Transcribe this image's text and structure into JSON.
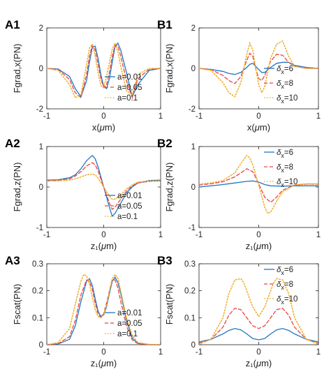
{
  "colors": {
    "blue": "#1f77c4",
    "red": "#e8453c",
    "yellow": "#f0b030"
  },
  "chart_data": [
    {
      "panel_label": "A1",
      "type": "line",
      "xlabel_pre": "x(",
      "xlabel_mu": "μ",
      "xlabel_post": "m)",
      "ylabel": "Fgrad,x(PN)",
      "xlim": [
        -1,
        1
      ],
      "ylim": [
        -2,
        2
      ],
      "xticks": [
        -1,
        0,
        1
      ],
      "xtick_labels": [
        "-1",
        "0",
        "1"
      ],
      "yticks": [
        -2,
        0,
        2
      ],
      "ytick_labels": [
        "-2",
        "0",
        "2"
      ],
      "legend_loc": "lower-right",
      "series": [
        {
          "name": "a=0.01",
          "color": "blue",
          "dash": "solid",
          "x": [
            -1,
            -0.8,
            -0.6,
            -0.5,
            -0.4,
            -0.3,
            -0.25,
            -0.2,
            -0.15,
            -0.1,
            -0.05,
            0,
            0.05,
            0.1,
            0.15,
            0.2,
            0.25,
            0.3,
            0.4,
            0.5,
            0.6,
            0.8,
            1
          ],
          "y": [
            0,
            -0.03,
            -0.4,
            -1.0,
            -1.4,
            -0.6,
            0.3,
            1.05,
            1.1,
            0.5,
            -0.3,
            -0.9,
            -1.0,
            -0.5,
            0.3,
            1.1,
            1.25,
            0.9,
            -0.2,
            -1.4,
            -0.8,
            -0.1,
            0
          ]
        },
        {
          "name": "a=0.05",
          "color": "red",
          "dash": "dashed",
          "x": [
            -1,
            -0.8,
            -0.6,
            -0.5,
            -0.4,
            -0.3,
            -0.25,
            -0.2,
            -0.15,
            -0.1,
            -0.05,
            0,
            0.05,
            0.1,
            0.15,
            0.2,
            0.25,
            0.3,
            0.4,
            0.5,
            0.6,
            0.8,
            1
          ],
          "y": [
            0,
            -0.05,
            -0.55,
            -1.2,
            -1.45,
            -0.3,
            0.6,
            1.15,
            0.9,
            0.2,
            -0.5,
            -0.95,
            -0.8,
            -0.2,
            0.6,
            1.15,
            1.1,
            0.6,
            -0.6,
            -1.45,
            -0.5,
            -0.05,
            0
          ]
        },
        {
          "name": "a=0.1",
          "color": "yellow",
          "dash": "dotted",
          "x": [
            -1,
            -0.8,
            -0.6,
            -0.5,
            -0.4,
            -0.3,
            -0.25,
            -0.2,
            -0.15,
            -0.1,
            -0.05,
            0,
            0.05,
            0.1,
            0.15,
            0.2,
            0.25,
            0.3,
            0.4,
            0.5,
            0.6,
            0.8,
            1
          ],
          "y": [
            0,
            -0.1,
            -0.8,
            -1.45,
            -1.3,
            0.2,
            1.0,
            1.2,
            0.6,
            -0.2,
            -0.85,
            -0.95,
            -0.4,
            0.3,
            0.95,
            1.25,
            0.8,
            0.1,
            -1.1,
            -1.3,
            -0.3,
            0,
            0
          ]
        }
      ]
    },
    {
      "panel_label": "B1",
      "type": "line",
      "xlabel_pre": "x(",
      "xlabel_mu": "μ",
      "xlabel_post": "m)",
      "ylabel": "Fgrad,x(PN)",
      "xlim": [
        -1,
        1
      ],
      "ylim": [
        -2,
        2
      ],
      "xticks": [
        -1,
        0,
        1
      ],
      "xtick_labels": [
        "-1",
        "0",
        "1"
      ],
      "yticks": [
        -2,
        0,
        2
      ],
      "ytick_labels": [
        "-2",
        "0",
        "2"
      ],
      "legend_loc": "lower-right",
      "series": [
        {
          "name": "6",
          "color": "blue",
          "dash": "solid",
          "x": [
            -1,
            -0.8,
            -0.6,
            -0.5,
            -0.4,
            -0.3,
            -0.2,
            -0.15,
            -0.1,
            -0.05,
            0,
            0.05,
            0.1,
            0.2,
            0.3,
            0.4,
            0.5,
            0.6,
            0.8,
            1
          ],
          "y": [
            0,
            -0.05,
            -0.15,
            -0.25,
            -0.3,
            -0.2,
            0.05,
            0.2,
            0.25,
            0.1,
            -0.05,
            -0.2,
            -0.2,
            0.05,
            0.25,
            0.3,
            0.3,
            0.15,
            0.05,
            0
          ]
        },
        {
          "name": "8",
          "color": "red",
          "dash": "dashed",
          "x": [
            -1,
            -0.8,
            -0.6,
            -0.5,
            -0.4,
            -0.3,
            -0.2,
            -0.15,
            -0.1,
            -0.05,
            0,
            0.05,
            0.1,
            0.2,
            0.3,
            0.4,
            0.5,
            0.6,
            0.8,
            1
          ],
          "y": [
            0,
            -0.05,
            -0.35,
            -0.6,
            -0.75,
            -0.4,
            0.4,
            0.75,
            0.6,
            0.0,
            -0.5,
            -0.6,
            -0.35,
            0.35,
            0.7,
            0.65,
            0.3,
            0.1,
            0,
            0
          ]
        },
        {
          "name": "10",
          "color": "yellow",
          "dash": "dotted",
          "x": [
            -1,
            -0.8,
            -0.6,
            -0.5,
            -0.4,
            -0.3,
            -0.2,
            -0.15,
            -0.1,
            -0.05,
            0,
            0.05,
            0.1,
            0.2,
            0.3,
            0.4,
            0.5,
            0.6,
            0.8,
            1
          ],
          "y": [
            0,
            -0.1,
            -0.7,
            -1.2,
            -1.4,
            -0.7,
            0.7,
            1.25,
            0.9,
            0.0,
            -0.8,
            -1.2,
            -0.9,
            0.5,
            1.2,
            1.35,
            0.6,
            0.1,
            0,
            0
          ]
        }
      ]
    },
    {
      "panel_label": "A2",
      "type": "line",
      "xlabel_pre": "z₁(",
      "xlabel_mu": "μ",
      "xlabel_post": "m)",
      "ylabel": "Fgrad,z(PN)",
      "xlim": [
        -1,
        1
      ],
      "ylim": [
        -1,
        1
      ],
      "xticks": [
        -1,
        0,
        1
      ],
      "xtick_labels": [
        "-1",
        "0",
        "1"
      ],
      "yticks": [
        -1,
        0,
        1
      ],
      "ytick_labels": [
        "-1",
        "0",
        "1"
      ],
      "legend_loc": "lower-right",
      "series": [
        {
          "name": "a=0.01",
          "color": "blue",
          "dash": "solid",
          "x": [
            -1,
            -0.8,
            -0.6,
            -0.5,
            -0.4,
            -0.3,
            -0.2,
            -0.15,
            -0.1,
            0,
            0.1,
            0.15,
            0.2,
            0.3,
            0.4,
            0.5,
            0.6,
            0.8,
            1
          ],
          "y": [
            0.17,
            0.18,
            0.23,
            0.3,
            0.45,
            0.65,
            0.78,
            0.7,
            0.5,
            0.0,
            -0.5,
            -0.72,
            -0.65,
            -0.4,
            -0.15,
            0.0,
            0.1,
            0.16,
            0.17
          ]
        },
        {
          "name": "a=0.05",
          "color": "red",
          "dash": "dashed",
          "x": [
            -1,
            -0.8,
            -0.6,
            -0.5,
            -0.4,
            -0.3,
            -0.2,
            -0.15,
            -0.1,
            0,
            0.1,
            0.15,
            0.2,
            0.3,
            0.4,
            0.5,
            0.6,
            0.8,
            1
          ],
          "y": [
            0.15,
            0.17,
            0.2,
            0.27,
            0.38,
            0.52,
            0.6,
            0.55,
            0.4,
            0.0,
            -0.4,
            -0.55,
            -0.5,
            -0.3,
            -0.1,
            0.03,
            0.1,
            0.14,
            0.15
          ]
        },
        {
          "name": "a=0.1",
          "color": "yellow",
          "dash": "dotted",
          "x": [
            -1,
            -0.8,
            -0.6,
            -0.5,
            -0.4,
            -0.3,
            -0.2,
            -0.15,
            -0.1,
            0,
            0.1,
            0.15,
            0.2,
            0.3,
            0.4,
            0.5,
            0.6,
            0.8,
            1
          ],
          "y": [
            0.15,
            0.15,
            0.17,
            0.2,
            0.25,
            0.3,
            0.32,
            0.3,
            0.22,
            0.0,
            -0.22,
            -0.3,
            -0.3,
            -0.2,
            -0.05,
            0.05,
            0.12,
            0.15,
            0.15
          ]
        }
      ]
    },
    {
      "panel_label": "B2",
      "type": "line",
      "xlabel_pre": "z₁(",
      "xlabel_mu": "μ",
      "xlabel_post": "m)",
      "ylabel": "Fgrad,z(PN)",
      "xlim": [
        -1,
        1
      ],
      "ylim": [
        -1,
        1
      ],
      "xticks": [
        -1,
        0,
        1
      ],
      "xtick_labels": [
        "-1",
        "0",
        "1"
      ],
      "yticks": [
        -1,
        0,
        1
      ],
      "ytick_labels": [
        "-1",
        "0",
        "1"
      ],
      "legend_loc": "top-right",
      "series": [
        {
          "name": "6",
          "color": "blue",
          "dash": "solid",
          "x": [
            -1,
            -0.8,
            -0.6,
            -0.4,
            -0.2,
            -0.1,
            0,
            0.1,
            0.2,
            0.4,
            0.6,
            0.8,
            1
          ],
          "y": [
            0.0,
            0.03,
            0.06,
            0.1,
            0.14,
            0.15,
            0.12,
            0.06,
            0.03,
            0.02,
            0.03,
            0.03,
            0.03
          ]
        },
        {
          "name": "8",
          "color": "red",
          "dash": "dashed",
          "x": [
            -1,
            -0.8,
            -0.6,
            -0.4,
            -0.3,
            -0.2,
            -0.1,
            0,
            0.1,
            0.2,
            0.3,
            0.4,
            0.6,
            0.8,
            1
          ],
          "y": [
            0.05,
            0.08,
            0.13,
            0.25,
            0.35,
            0.45,
            0.38,
            0.08,
            -0.25,
            -0.38,
            -0.25,
            -0.08,
            0.05,
            0.07,
            0.07
          ]
        },
        {
          "name": "10",
          "color": "yellow",
          "dash": "dotted",
          "x": [
            -1,
            -0.8,
            -0.6,
            -0.4,
            -0.3,
            -0.2,
            -0.15,
            -0.1,
            0,
            0.1,
            0.15,
            0.2,
            0.3,
            0.4,
            0.6,
            0.8,
            1
          ],
          "y": [
            0.07,
            0.1,
            0.16,
            0.35,
            0.58,
            0.78,
            0.72,
            0.55,
            0.05,
            -0.5,
            -0.65,
            -0.62,
            -0.35,
            -0.12,
            0.05,
            0.08,
            0.08
          ]
        }
      ]
    },
    {
      "panel_label": "A3",
      "type": "line",
      "xlabel_pre": "z₁(",
      "xlabel_mu": "μ",
      "xlabel_post": "m)",
      "ylabel": "Fscat(PN)",
      "xlim": [
        -1,
        1
      ],
      "ylim": [
        0,
        0.3
      ],
      "xticks": [
        -1,
        0,
        1
      ],
      "xtick_labels": [
        "-1",
        "0",
        "1"
      ],
      "yticks": [
        0,
        0.1,
        0.2,
        0.3
      ],
      "ytick_labels": [
        "0",
        "0.1",
        "0.2",
        "0.3"
      ],
      "legend_loc": "lower-right",
      "series": [
        {
          "name": "a=0.01",
          "color": "blue",
          "dash": "solid",
          "x": [
            -1,
            -0.8,
            -0.6,
            -0.5,
            -0.4,
            -0.3,
            -0.25,
            -0.2,
            -0.15,
            -0.1,
            -0.05,
            0,
            0.05,
            0.1,
            0.15,
            0.2,
            0.25,
            0.3,
            0.4,
            0.5,
            0.6,
            0.8,
            1
          ],
          "y": [
            0.0,
            0.003,
            0.02,
            0.07,
            0.16,
            0.235,
            0.245,
            0.22,
            0.17,
            0.125,
            0.105,
            0.11,
            0.14,
            0.19,
            0.235,
            0.25,
            0.23,
            0.19,
            0.09,
            0.025,
            0.005,
            0.001,
            0.0
          ]
        },
        {
          "name": "a=0.05",
          "color": "red",
          "dash": "dashed",
          "x": [
            -1,
            -0.8,
            -0.6,
            -0.5,
            -0.4,
            -0.3,
            -0.25,
            -0.2,
            -0.15,
            -0.1,
            -0.05,
            0,
            0.05,
            0.1,
            0.15,
            0.2,
            0.25,
            0.3,
            0.4,
            0.5,
            0.6,
            0.8,
            1
          ],
          "y": [
            0.0,
            0.004,
            0.03,
            0.09,
            0.185,
            0.24,
            0.235,
            0.205,
            0.155,
            0.115,
            0.1,
            0.115,
            0.155,
            0.2,
            0.24,
            0.24,
            0.21,
            0.16,
            0.07,
            0.018,
            0.004,
            0.001,
            0.0
          ]
        },
        {
          "name": "a=0.1",
          "color": "yellow",
          "dash": "dotted",
          "x": [
            -1,
            -0.8,
            -0.6,
            -0.5,
            -0.4,
            -0.35,
            -0.3,
            -0.25,
            -0.2,
            -0.15,
            -0.1,
            -0.05,
            0,
            0.05,
            0.1,
            0.15,
            0.2,
            0.25,
            0.3,
            0.4,
            0.5,
            0.6,
            0.8,
            1
          ],
          "y": [
            0.0,
            0.008,
            0.06,
            0.15,
            0.235,
            0.26,
            0.255,
            0.225,
            0.175,
            0.13,
            0.105,
            0.1,
            0.11,
            0.145,
            0.2,
            0.245,
            0.26,
            0.245,
            0.2,
            0.1,
            0.035,
            0.008,
            0.001,
            0.0
          ]
        }
      ]
    },
    {
      "panel_label": "B3",
      "type": "line",
      "xlabel_pre": "z₁(",
      "xlabel_mu": "μ",
      "xlabel_post": "m)",
      "ylabel": "Fscat(PN)",
      "xlim": [
        -1,
        1
      ],
      "ylim": [
        0,
        0.3
      ],
      "xticks": [
        -1,
        0,
        1
      ],
      "xtick_labels": [
        "-1",
        "0",
        "1"
      ],
      "yticks": [
        0,
        0.1,
        0.2,
        0.3
      ],
      "ytick_labels": [
        "0",
        "0.1",
        "0.2",
        "0.3"
      ],
      "legend_loc": "top-right",
      "series": [
        {
          "name": "6",
          "color": "blue",
          "dash": "solid",
          "x": [
            -1,
            -0.8,
            -0.6,
            -0.5,
            -0.4,
            -0.3,
            -0.2,
            -0.1,
            0,
            0.1,
            0.2,
            0.3,
            0.4,
            0.5,
            0.6,
            0.8,
            1
          ],
          "y": [
            0.01,
            0.02,
            0.04,
            0.053,
            0.06,
            0.055,
            0.04,
            0.023,
            0.018,
            0.023,
            0.04,
            0.055,
            0.06,
            0.053,
            0.04,
            0.02,
            0.01
          ]
        },
        {
          "name": "8",
          "color": "red",
          "dash": "dashed",
          "x": [
            -1,
            -0.8,
            -0.6,
            -0.5,
            -0.4,
            -0.3,
            -0.2,
            -0.1,
            0,
            0.1,
            0.2,
            0.3,
            0.4,
            0.5,
            0.6,
            0.8,
            1
          ],
          "y": [
            0.005,
            0.02,
            0.065,
            0.11,
            0.135,
            0.13,
            0.1,
            0.07,
            0.06,
            0.07,
            0.1,
            0.13,
            0.135,
            0.11,
            0.065,
            0.02,
            0.005
          ]
        },
        {
          "name": "10",
          "color": "yellow",
          "dash": "dotted",
          "x": [
            -1,
            -0.8,
            -0.6,
            -0.5,
            -0.4,
            -0.3,
            -0.25,
            -0.2,
            -0.1,
            0,
            0.1,
            0.2,
            0.25,
            0.3,
            0.4,
            0.5,
            0.6,
            0.8,
            1
          ],
          "y": [
            0.002,
            0.02,
            0.1,
            0.19,
            0.24,
            0.245,
            0.23,
            0.2,
            0.14,
            0.105,
            0.14,
            0.2,
            0.23,
            0.245,
            0.24,
            0.19,
            0.1,
            0.02,
            0.002
          ]
        }
      ]
    }
  ]
}
